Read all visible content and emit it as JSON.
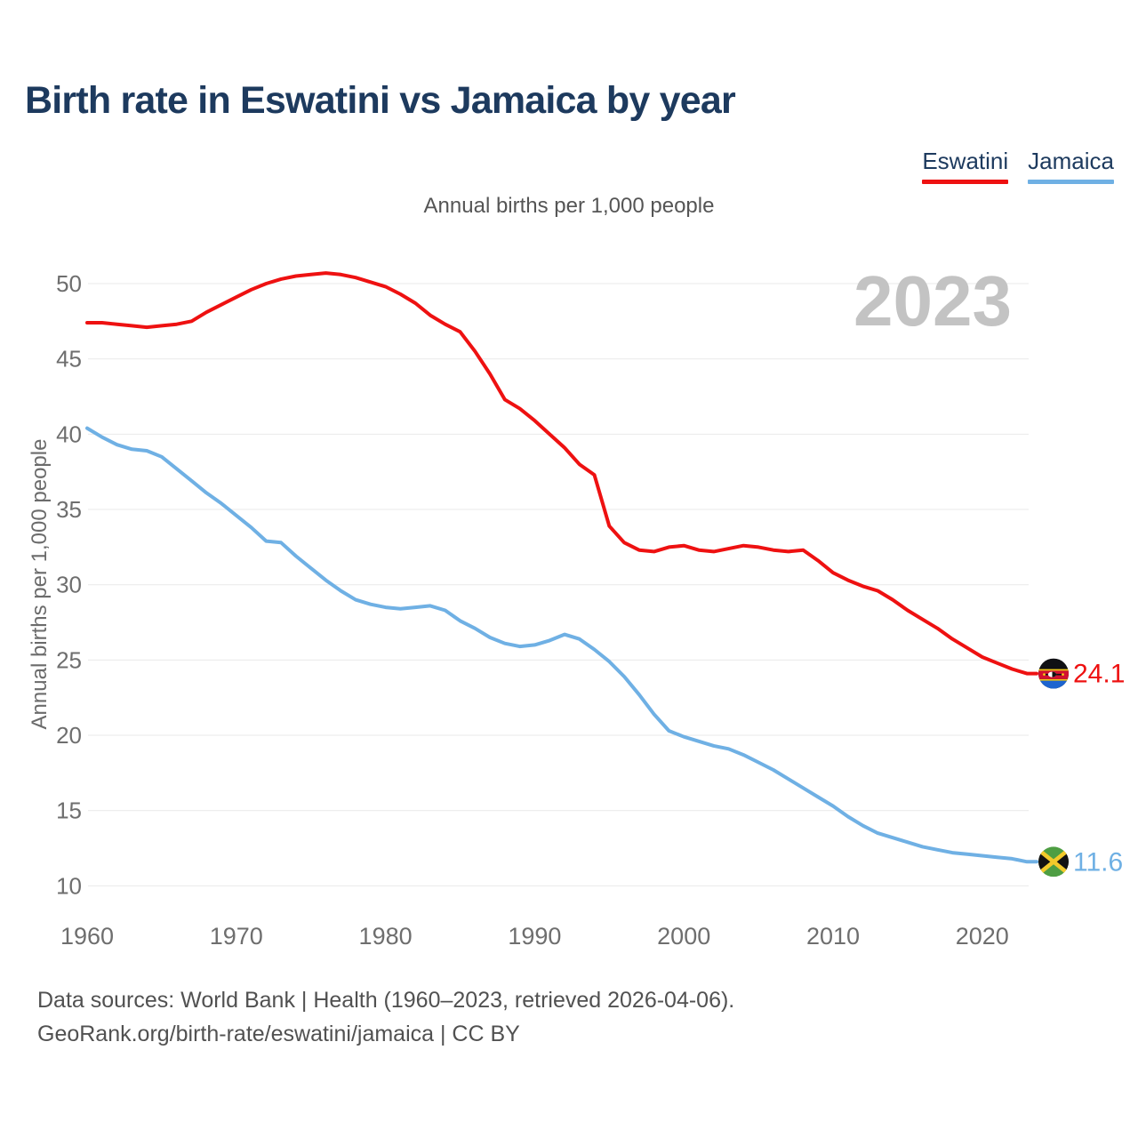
{
  "title": "Birth rate in Eswatini vs Jamaica by year",
  "subtitle": "Annual births per 1,000 people",
  "y_axis_label": "Annual births per 1,000 people",
  "watermark": "2023",
  "legend": [
    {
      "label": "Eswatini",
      "color": "#ee1111"
    },
    {
      "label": "Jamaica",
      "color": "#6fb0e4"
    }
  ],
  "footer": {
    "line1": "Data sources: World Bank | Health (1960–2023, retrieved 2026-04-06).",
    "line2": "GeoRank.org/birth-rate/eswatini/jamaica | CC BY"
  },
  "colors": {
    "title_navy": "#1d3a5e",
    "eswatini_red": "#ee1111",
    "jamaica_blue": "#6fb0e4",
    "gridline": "#e9e9e9",
    "tick_gray": "#6e6e6e",
    "watermark_gray": "#c3c3c3",
    "footer_gray": "#515151"
  },
  "chart_data": {
    "type": "line",
    "title": "Birth rate in Eswatini vs Jamaica by year",
    "subtitle": "Annual births per 1,000 people",
    "ylabel": "Annual births per 1,000 people",
    "xlabel": "",
    "grid": "horizontal",
    "legend_position": "top-right",
    "watermark": "2023",
    "ylim": [
      8.5,
      52
    ],
    "xlim": [
      1960,
      2023
    ],
    "y_ticks": [
      10,
      15,
      20,
      25,
      30,
      35,
      40,
      45,
      50
    ],
    "x_ticks": [
      1960,
      1970,
      1980,
      1990,
      2000,
      2010,
      2020
    ],
    "x": [
      1960,
      1961,
      1962,
      1963,
      1964,
      1965,
      1966,
      1967,
      1968,
      1969,
      1970,
      1971,
      1972,
      1973,
      1974,
      1975,
      1976,
      1977,
      1978,
      1979,
      1980,
      1981,
      1982,
      1983,
      1984,
      1985,
      1986,
      1987,
      1988,
      1989,
      1990,
      1991,
      1992,
      1993,
      1994,
      1995,
      1996,
      1997,
      1998,
      1999,
      2000,
      2001,
      2002,
      2003,
      2004,
      2005,
      2006,
      2007,
      2008,
      2009,
      2010,
      2011,
      2012,
      2013,
      2014,
      2015,
      2016,
      2017,
      2018,
      2019,
      2020,
      2021,
      2022,
      2023
    ],
    "series": [
      {
        "name": "Eswatini",
        "color": "#ee1111",
        "end_label": "24.1",
        "values": [
          47.4,
          47.4,
          47.3,
          47.2,
          47.1,
          47.2,
          47.3,
          47.5,
          48.1,
          48.6,
          49.1,
          49.6,
          50.0,
          50.3,
          50.5,
          50.6,
          50.7,
          50.6,
          50.4,
          50.1,
          49.8,
          49.3,
          48.7,
          47.9,
          47.3,
          46.8,
          45.5,
          44.0,
          42.3,
          41.7,
          40.9,
          40.0,
          39.1,
          38.0,
          37.3,
          33.9,
          32.8,
          32.3,
          32.2,
          32.5,
          32.6,
          32.3,
          32.2,
          32.4,
          32.6,
          32.5,
          32.3,
          32.2,
          32.3,
          31.6,
          30.8,
          30.3,
          29.9,
          29.6,
          29.0,
          28.3,
          27.7,
          27.1,
          26.4,
          25.8,
          25.2,
          24.8,
          24.4,
          24.1
        ]
      },
      {
        "name": "Jamaica",
        "color": "#6fb0e4",
        "end_label": "11.6",
        "values": [
          40.4,
          39.8,
          39.3,
          39.0,
          38.9,
          38.5,
          37.7,
          36.9,
          36.1,
          35.4,
          34.6,
          33.8,
          32.9,
          32.8,
          31.9,
          31.1,
          30.3,
          29.6,
          29.0,
          28.7,
          28.5,
          28.4,
          28.5,
          28.6,
          28.3,
          27.6,
          27.1,
          26.5,
          26.1,
          25.9,
          26.0,
          26.3,
          26.7,
          26.4,
          25.7,
          24.9,
          23.9,
          22.7,
          21.4,
          20.3,
          19.9,
          19.6,
          19.3,
          19.1,
          18.7,
          18.2,
          17.7,
          17.1,
          16.5,
          15.9,
          15.3,
          14.6,
          14.0,
          13.5,
          13.2,
          12.9,
          12.6,
          12.4,
          12.2,
          12.1,
          12.0,
          11.9,
          11.8,
          11.6
        ]
      }
    ]
  }
}
